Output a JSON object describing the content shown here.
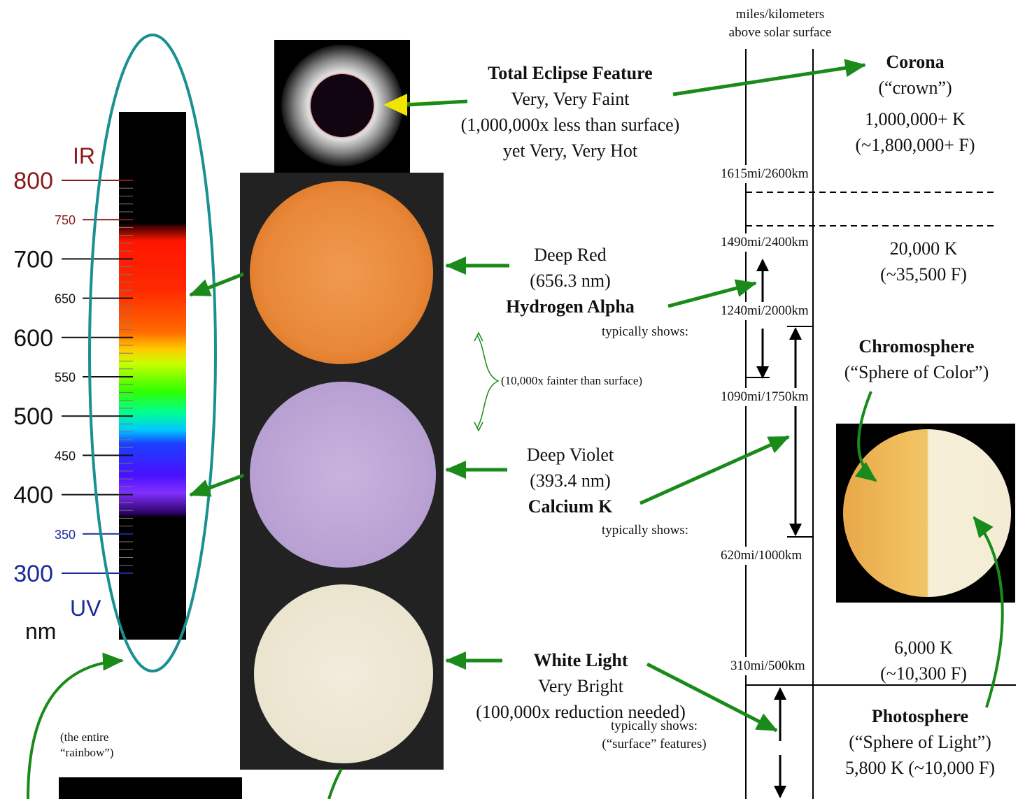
{
  "spectrum": {
    "ir_label": "IR",
    "uv_label": "UV",
    "unit_label": "nm",
    "ticks": [
      {
        "value": "800",
        "major": true,
        "color": "#8b1a1a"
      },
      {
        "value": "750",
        "major": false,
        "color": "#8b1a1a"
      },
      {
        "value": "700",
        "major": true,
        "color": "#111111"
      },
      {
        "value": "650",
        "major": false,
        "color": "#111111"
      },
      {
        "value": "600",
        "major": true,
        "color": "#111111"
      },
      {
        "value": "550",
        "major": false,
        "color": "#111111"
      },
      {
        "value": "500",
        "major": true,
        "color": "#111111"
      },
      {
        "value": "450",
        "major": false,
        "color": "#111111"
      },
      {
        "value": "400",
        "major": true,
        "color": "#111111"
      },
      {
        "value": "350",
        "major": false,
        "color": "#1a2a9a"
      },
      {
        "value": "300",
        "major": true,
        "color": "#1a2a9a"
      }
    ],
    "rainbow_note": "(the entire “rainbow”)"
  },
  "scale_header": {
    "line1": "miles/kilometers",
    "line2": "above solar surface"
  },
  "altitudes": {
    "a1": "1615mi/2600km",
    "a2": "1490mi/2400km",
    "a3": "1240mi/2000km",
    "a4": "1090mi/1750km",
    "a5": "620mi/1000km",
    "a6": "310mi/500km"
  },
  "eclipse": {
    "title": "Total Eclipse Feature",
    "line1": "Very, Very Faint",
    "line2": "(1,000,000x less than surface)",
    "line3": "yet Very, Very Hot"
  },
  "halpha": {
    "line1": "Deep Red",
    "line2": "(656.3 nm)",
    "title": "Hydrogen Alpha",
    "shows": "typically shows:"
  },
  "fainter_note": "(10,000x fainter than surface)",
  "calk": {
    "line1": "Deep Violet",
    "line2": "(393.4 nm)",
    "title": "Calcium K",
    "shows": "typically shows:"
  },
  "white": {
    "title": "White Light",
    "line1": "Very Bright",
    "line2": "(100,000x reduction needed)",
    "shows": "typically shows:",
    "shows2": "(“surface” features)"
  },
  "corona": {
    "title": "Corona",
    "subtitle": "(“crown”)",
    "temp_k": "1,000,000+ K",
    "temp_f": "(~1,800,000+ F)"
  },
  "chromo": {
    "temp_k": "20,000 K",
    "temp_f": "(~35,500 F)",
    "title": "Chromosphere",
    "subtitle": "(“Sphere of Color”)"
  },
  "photo": {
    "temp_k": "6,000 K",
    "temp_f": "(~10,300 F)",
    "title": "Photosphere",
    "subtitle": "(“Sphere of Light”)",
    "temp2": "5,800 K (~10,000 F)"
  },
  "colors": {
    "arrow": "#1a8a1a",
    "highlight": "#f2e600",
    "ellipse": "#1a9090"
  }
}
